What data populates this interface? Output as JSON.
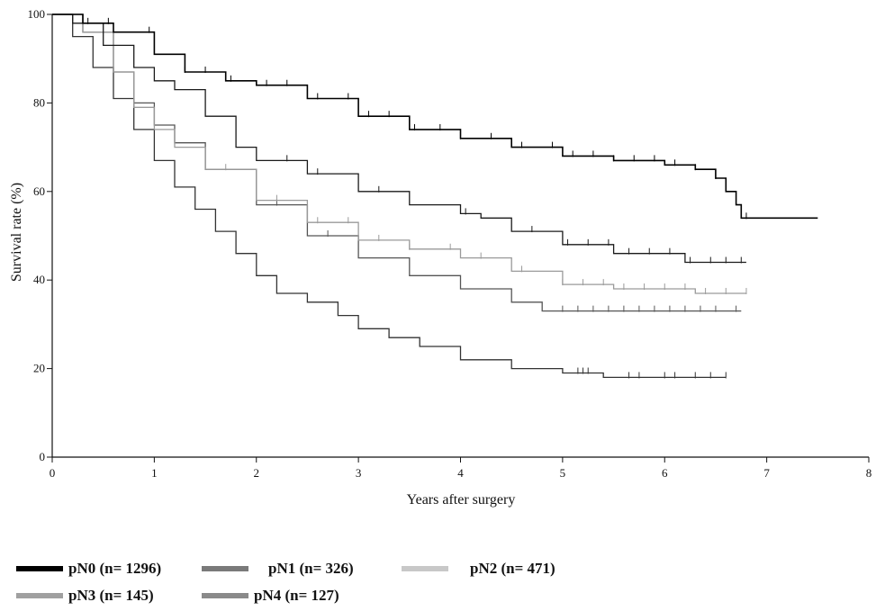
{
  "chart_data": {
    "type": "line",
    "xlabel": "Years after surgery",
    "ylabel": "Survival rate (%)",
    "xlim": [
      0,
      8
    ],
    "ylim": [
      0,
      100
    ],
    "xticks": [
      0,
      1,
      2,
      3,
      4,
      5,
      6,
      7,
      8
    ],
    "yticks": [
      0,
      20,
      40,
      60,
      80,
      100
    ],
    "x_tick_labels": [
      "0",
      "1",
      "2",
      "3",
      "4",
      "5",
      "6",
      "7",
      "8"
    ],
    "y_tick_labels": [
      "0",
      "20",
      "40",
      "60",
      "80",
      "100"
    ],
    "grid": false,
    "legend_position": "bottom",
    "series": [
      {
        "name": "pN0 (n= 1296)",
        "color": "#000000",
        "x": [
          0,
          0.3,
          0.6,
          1.0,
          1.3,
          1.7,
          2.0,
          2.5,
          3.0,
          3.5,
          4.0,
          4.5,
          5.0,
          5.5,
          6.0,
          6.3,
          6.5,
          6.6,
          6.7,
          6.75,
          7.5
        ],
        "y": [
          100,
          98,
          96,
          91,
          87,
          85,
          84,
          81,
          77,
          74,
          72,
          70,
          68,
          67,
          66,
          65,
          63,
          60,
          57,
          54,
          54
        ],
        "censor_x": [
          0.35,
          0.55,
          0.95,
          1.3,
          1.5,
          1.75,
          2.1,
          2.3,
          2.6,
          2.9,
          3.1,
          3.3,
          3.55,
          3.8,
          4.0,
          4.3,
          4.6,
          4.9,
          5.1,
          5.3,
          5.5,
          5.7,
          5.9,
          6.1,
          6.3,
          6.5,
          6.8
        ]
      },
      {
        "name": "pN1 (n= 326)",
        "color": "#1a1a1a",
        "x": [
          0,
          0.2,
          0.5,
          0.8,
          1.0,
          1.2,
          1.5,
          1.8,
          2.0,
          2.5,
          3.0,
          3.5,
          4.0,
          4.2,
          4.5,
          5.0,
          5.5,
          6.0,
          6.2,
          6.8
        ],
        "y": [
          100,
          98,
          93,
          88,
          85,
          83,
          77,
          70,
          67,
          64,
          60,
          57,
          55,
          54,
          51,
          48,
          46,
          46,
          44,
          44
        ],
        "censor_x": [
          2.3,
          2.6,
          3.2,
          4.05,
          4.7,
          5.05,
          5.25,
          5.45,
          5.65,
          5.85,
          6.05,
          6.25,
          6.45,
          6.6,
          6.75
        ]
      },
      {
        "name": "pN2 (n= 471)",
        "color": "#9a9a9a",
        "x": [
          0,
          0.3,
          0.6,
          0.8,
          1.0,
          1.2,
          1.5,
          2.0,
          2.5,
          3.0,
          3.5,
          4.0,
          4.5,
          5.0,
          5.5,
          6.0,
          6.3,
          6.8
        ],
        "y": [
          100,
          96,
          87,
          79,
          74,
          70,
          65,
          58,
          53,
          49,
          47,
          45,
          42,
          39,
          38,
          38,
          37,
          37
        ],
        "censor_x": [
          1.7,
          2.2,
          2.6,
          2.9,
          3.2,
          3.5,
          3.9,
          4.2,
          4.6,
          5.0,
          5.2,
          5.4,
          5.6,
          5.8,
          6.0,
          6.2,
          6.4,
          6.6,
          6.8
        ]
      },
      {
        "name": "pN3 (n= 145)",
        "color": "#555555",
        "x": [
          0,
          0.3,
          0.6,
          0.8,
          1.0,
          1.2,
          1.5,
          2.0,
          2.5,
          3.0,
          3.5,
          4.0,
          4.5,
          4.8,
          5.5,
          6.0,
          6.75
        ],
        "y": [
          100,
          96,
          87,
          80,
          75,
          71,
          65,
          57,
          50,
          45,
          41,
          38,
          35,
          33,
          33,
          33,
          33
        ],
        "censor_x": [
          2.2,
          2.7,
          5.0,
          5.15,
          5.3,
          5.45,
          5.6,
          5.75,
          5.9,
          6.05,
          6.2,
          6.35,
          6.5,
          6.7
        ]
      },
      {
        "name": "pN4 (n= 127)",
        "color": "#333333",
        "x": [
          0,
          0.2,
          0.4,
          0.6,
          0.8,
          1.0,
          1.2,
          1.4,
          1.6,
          1.8,
          2.0,
          2.2,
          2.5,
          2.8,
          3.0,
          3.3,
          3.6,
          4.0,
          4.5,
          5.0,
          5.4,
          6.6
        ],
        "y": [
          100,
          95,
          88,
          81,
          74,
          67,
          61,
          56,
          51,
          46,
          41,
          37,
          35,
          32,
          29,
          27,
          25,
          22,
          20,
          19,
          18,
          18
        ],
        "censor_x": [
          5.15,
          5.2,
          5.25,
          5.65,
          5.75,
          6.0,
          6.1,
          6.3,
          6.45,
          6.6
        ]
      }
    ]
  },
  "legend": {
    "items": [
      {
        "label": "pN0 (n= 1296)",
        "swatch_color": "#000000"
      },
      {
        "label": "pN1 (n= 326)",
        "swatch_color": "#7a7a7a"
      },
      {
        "label": "pN2 (n= 471)",
        "swatch_color": "#c8c8c8"
      },
      {
        "label": "pN3 (n= 145)",
        "swatch_color": "#a0a0a0"
      },
      {
        "label": "pN4 (n= 127)",
        "swatch_color": "#8a8a8a"
      }
    ]
  }
}
